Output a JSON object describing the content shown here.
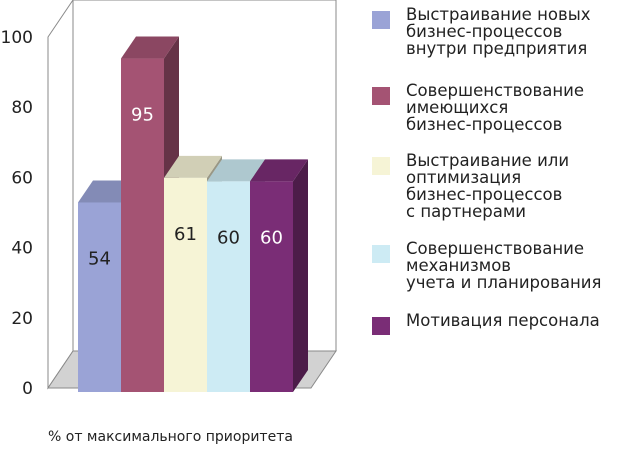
{
  "chart_data": {
    "type": "bar",
    "title": "",
    "xlabel": "% от максимального приоритета",
    "ylabel": "",
    "ylim": [
      0,
      100
    ],
    "yticks": [
      0,
      20,
      40,
      60,
      80,
      100
    ],
    "grid": false,
    "legend_position": "right",
    "style": "3d",
    "series": [
      {
        "name": "Выстраивание новых бизнес-процессов внутри предприятия",
        "value": 54,
        "label": "54",
        "color": "#9aa3d6",
        "label_color": "#222222"
      },
      {
        "name": "Совершенствование имеющихся бизнес-процессов",
        "value": 95,
        "label": "95",
        "color": "#a45373",
        "label_color": "#ffffff"
      },
      {
        "name": "Выстраивание или оптимизация бизнес-процессов с партнерами",
        "value": 61,
        "label": "61",
        "color": "#f6f4d6",
        "label_color": "#222222"
      },
      {
        "name": "Совершенствование механизмов учета и планирования",
        "value": 60,
        "label": "60",
        "color": "#cdebf4",
        "label_color": "#222222"
      },
      {
        "name": "Мотивация персонала",
        "value": 60,
        "label": "60",
        "color": "#7a2d76",
        "label_color": "#ffffff"
      }
    ]
  },
  "legend": {
    "items": [
      {
        "text": "Выстраивание новых\nбизнес-процессов\nвнутри предприятия"
      },
      {
        "text": "Совершенствование\nимеющихся\nбизнес-процессов"
      },
      {
        "text": "Выстраивание или\nоптимизация\nбизнес-процессов\nс партнерами"
      },
      {
        "text": "Совершенствование\nмеханизмов\nучета и планирования"
      },
      {
        "text": "Мотивация персонала"
      }
    ]
  }
}
